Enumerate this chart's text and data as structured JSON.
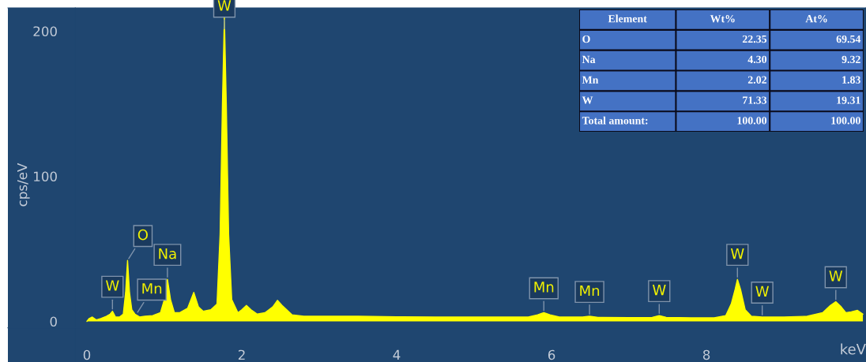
{
  "chart_data": [
    {
      "type": "area",
      "xlabel": "keV",
      "ylabel": "cps/eV",
      "x": [
        0.0,
        0.03,
        0.07,
        0.12,
        0.18,
        0.25,
        0.3,
        0.33,
        0.37,
        0.42,
        0.47,
        0.5,
        0.525,
        0.55,
        0.58,
        0.62,
        0.68,
        0.75,
        0.85,
        0.95,
        1.0,
        1.04,
        1.08,
        1.13,
        1.2,
        1.3,
        1.38,
        1.44,
        1.5,
        1.6,
        1.68,
        1.72,
        1.75,
        1.775,
        1.8,
        1.83,
        1.87,
        1.95,
        2.0,
        2.06,
        2.12,
        2.2,
        2.3,
        2.4,
        2.46,
        2.52,
        2.58,
        2.65,
        2.8,
        3.0,
        3.5,
        4.0,
        4.5,
        5.0,
        5.5,
        5.7,
        5.82,
        5.9,
        5.98,
        6.1,
        6.4,
        6.49,
        6.6,
        7.0,
        7.3,
        7.39,
        7.48,
        7.8,
        8.1,
        8.25,
        8.32,
        8.37,
        8.4,
        8.44,
        8.5,
        8.58,
        8.72,
        9.0,
        9.3,
        9.5,
        9.6,
        9.67,
        9.74,
        9.8,
        9.87,
        9.95,
        10.02
      ],
      "series": [
        {
          "color": "#ffff00",
          "values": [
            0,
            2,
            3,
            1,
            2,
            3.5,
            5,
            7,
            3,
            3,
            5,
            20,
            42,
            20,
            8,
            5,
            3,
            3.5,
            4,
            6,
            15,
            29,
            15,
            6,
            6,
            9,
            20,
            10,
            7,
            8,
            12,
            60,
            150,
            210,
            150,
            60,
            15,
            6,
            8,
            11,
            8,
            5,
            6,
            10,
            14.5,
            11,
            8,
            4.5,
            3.5,
            3.5,
            3.5,
            3.2,
            3,
            3,
            3,
            3,
            4.5,
            6,
            4.5,
            3,
            3,
            3.5,
            2.8,
            2.6,
            2.8,
            4,
            2.8,
            2.5,
            2.5,
            4,
            12,
            22,
            29,
            22,
            8,
            3.5,
            3,
            3,
            3.5,
            6,
            11,
            13.6,
            10,
            6,
            6.5,
            7.6,
            5
          ]
        }
      ],
      "xlim": [
        -1.02,
        10.06
      ],
      "ylim": [
        -28,
        216
      ],
      "xticks": [
        0,
        2,
        4,
        6,
        8
      ],
      "yticks": [
        0,
        100,
        200
      ],
      "grid": false,
      "annotations": [
        {
          "text": "W",
          "x": 1.775,
          "y": 200
        },
        {
          "text": "W",
          "x": 0.33,
          "y": 7
        },
        {
          "text": "O",
          "x": 0.525,
          "y": 42
        },
        {
          "text": "Mn",
          "x": 0.64,
          "y": 5
        },
        {
          "text": "Na",
          "x": 1.04,
          "y": 29
        },
        {
          "text": "Mn",
          "x": 5.9,
          "y": 6
        },
        {
          "text": "Mn",
          "x": 6.49,
          "y": 3.5
        },
        {
          "text": "W",
          "x": 7.39,
          "y": 4
        },
        {
          "text": "W",
          "x": 8.4,
          "y": 29
        },
        {
          "text": "W",
          "x": 8.72,
          "y": 3
        },
        {
          "text": "W",
          "x": 9.67,
          "y": 13.6
        },
        "Element",
        "Wt%",
        "At%",
        "O",
        "22.35",
        "69.54",
        "Na",
        "4.30",
        "9.32",
        "Mn",
        "2.02",
        "1.83",
        "W",
        "71.33",
        "19.31",
        "Total amount:",
        "100.00",
        "100.00"
      ]
    }
  ]
}
